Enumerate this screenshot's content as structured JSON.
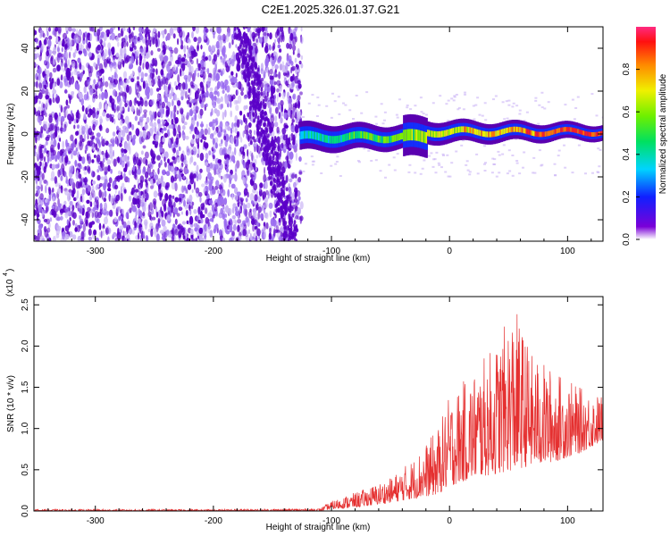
{
  "title": "C2E1.2025.326.01.37.G21",
  "colors": {
    "snr_line": "#e53030",
    "spec_dark": "#5a00c8",
    "spec_light": "#c9b3f5",
    "axis": "#000000"
  },
  "chart_data": [
    {
      "type": "heatmap",
      "name": "spectrogram",
      "xlabel": "Height of straight line (km)",
      "ylabel": "Frequency (Hz)",
      "xlim": [
        -352,
        130
      ],
      "ylim": [
        -50,
        50
      ],
      "xticks": [
        -300,
        -200,
        -100,
        0,
        100
      ],
      "xtick_labels": [
        "-300",
        "-200",
        "-100",
        "0",
        "100"
      ],
      "yticks": [
        -40,
        -20,
        0,
        20,
        40
      ],
      "ytick_labels": [
        "-40",
        "-20",
        "0",
        "20",
        "40"
      ],
      "noise_region_x": [
        -352,
        -125
      ],
      "signal_band_center_hz": 0,
      "signal_band_halfwidth_hz": 6,
      "colorbar": {
        "label": "Normalized spectral amplitude",
        "range": [
          0.0,
          1.0
        ],
        "ticks": [
          0.0,
          0.2,
          0.4,
          0.6,
          0.8
        ],
        "tick_labels": [
          "0.0",
          "0.2",
          "0.4",
          "0.6",
          "0.8"
        ]
      }
    },
    {
      "type": "line",
      "name": "snr",
      "xlabel": "Height of straight line (km)",
      "ylabel": "SNR (10 * v/v)",
      "scale_label": "(x10",
      "scale_exp": "4",
      "xlim": [
        -352,
        130
      ],
      "ylim": [
        0,
        2.6
      ],
      "xticks": [
        -300,
        -200,
        -100,
        0,
        100
      ],
      "xtick_labels": [
        "-300",
        "-200",
        "-100",
        "0",
        "100"
      ],
      "yticks": [
        0.0,
        0.5,
        1.0,
        1.5,
        2.0,
        2.5
      ],
      "ytick_labels": [
        "0.0",
        "0.5",
        "1.0",
        "1.5",
        "2.0",
        "2.5"
      ],
      "envelope": {
        "x": [
          -352,
          -200,
          -110,
          -100,
          -75,
          -50,
          -30,
          -10,
          0,
          20,
          40,
          55,
          70,
          90,
          110,
          130
        ],
        "lo": [
          0,
          0,
          0,
          0.02,
          0.05,
          0.1,
          0.15,
          0.2,
          0.3,
          0.4,
          0.45,
          0.5,
          0.55,
          0.6,
          0.7,
          0.85
        ],
        "hi": [
          0.02,
          0.02,
          0.03,
          0.12,
          0.25,
          0.4,
          0.65,
          1.0,
          1.4,
          1.7,
          2.05,
          2.5,
          1.9,
          1.7,
          1.5,
          1.4
        ]
      }
    }
  ]
}
